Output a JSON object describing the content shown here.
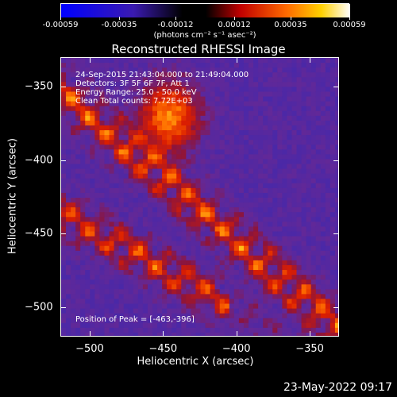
{
  "colorbar": {
    "tick_labels": [
      "-0.00059",
      "-0.00035",
      "-0.00012",
      "0.00012",
      "0.00035",
      "0.00059"
    ],
    "units_label": "(photons cm⁻² s⁻¹ asec⁻²)",
    "range": [
      -0.00059,
      0.00059
    ]
  },
  "chart_data": {
    "type": "heatmap",
    "title": "Reconstructed RHESSI Image",
    "xlabel": "Heliocentric X (arcsec)",
    "ylabel": "Heliocentric Y (arcsec)",
    "xlim": [
      -520,
      -330
    ],
    "ylim": [
      -520,
      -330
    ],
    "x_ticks": [
      -500,
      -450,
      -400,
      -350
    ],
    "y_ticks": [
      -500,
      -450,
      -400,
      -350
    ],
    "x_tick_labels": [
      "−500",
      "−450",
      "−400",
      "−350"
    ],
    "y_tick_labels": [
      "−500",
      "−450",
      "−400",
      "−350"
    ],
    "peak": {
      "x": -463,
      "y": -396
    },
    "colormap": "blue-purple-red-yellow-white (RHESSI standard)",
    "annotations": [
      "24-Sep-2015 21:43:04.000 to 21:49:04.000",
      "Detectors: 3F 5F 6F 7F, Att 1",
      "Energy Range: 25.0 - 50.0 keV",
      "Clean     Total counts: 7.72E+03"
    ],
    "peak_label": "Position of Peak = [-463,-396]"
  },
  "footer": {
    "timestamp": "23-May-2022 09:17"
  }
}
